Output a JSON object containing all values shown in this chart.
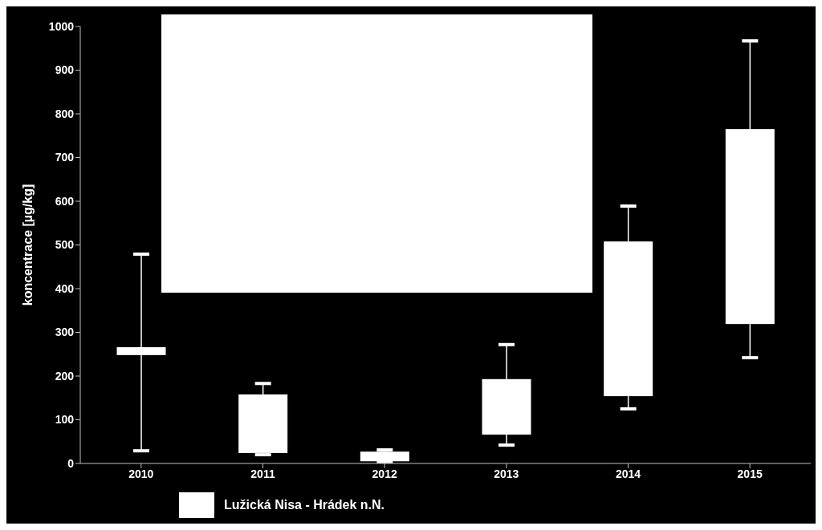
{
  "chart_data": {
    "type": "box",
    "ylabel": "koncentrace  [µg/kg]",
    "categories": [
      "2010",
      "2011",
      "2012",
      "2013",
      "2014",
      "2015"
    ],
    "series": [
      {
        "name": "Lužická Nisa - Hrádek n.N.",
        "color": "#ffffff",
        "boxes": [
          {
            "low": 29,
            "q1": 248,
            "median": 257,
            "q3": 266,
            "high": 479
          },
          {
            "low": 20,
            "q1": 24,
            "median": 90,
            "q3": 158,
            "high": 183
          },
          {
            "low": 4,
            "q1": 5,
            "median": 17,
            "q3": 27,
            "high": 31
          },
          {
            "low": 42,
            "q1": 66,
            "median": 120,
            "q3": 193,
            "high": 272
          },
          {
            "low": 125,
            "q1": 154,
            "median": 300,
            "q3": 508,
            "high": 589
          },
          {
            "low": 242,
            "q1": 319,
            "median": 550,
            "q3": 765,
            "high": 967
          }
        ]
      }
    ],
    "ylim": [
      0,
      1000
    ],
    "yticks": [
      0,
      100,
      200,
      300,
      400,
      500,
      600,
      700,
      800,
      900,
      1000
    ],
    "legend": "bottom"
  }
}
